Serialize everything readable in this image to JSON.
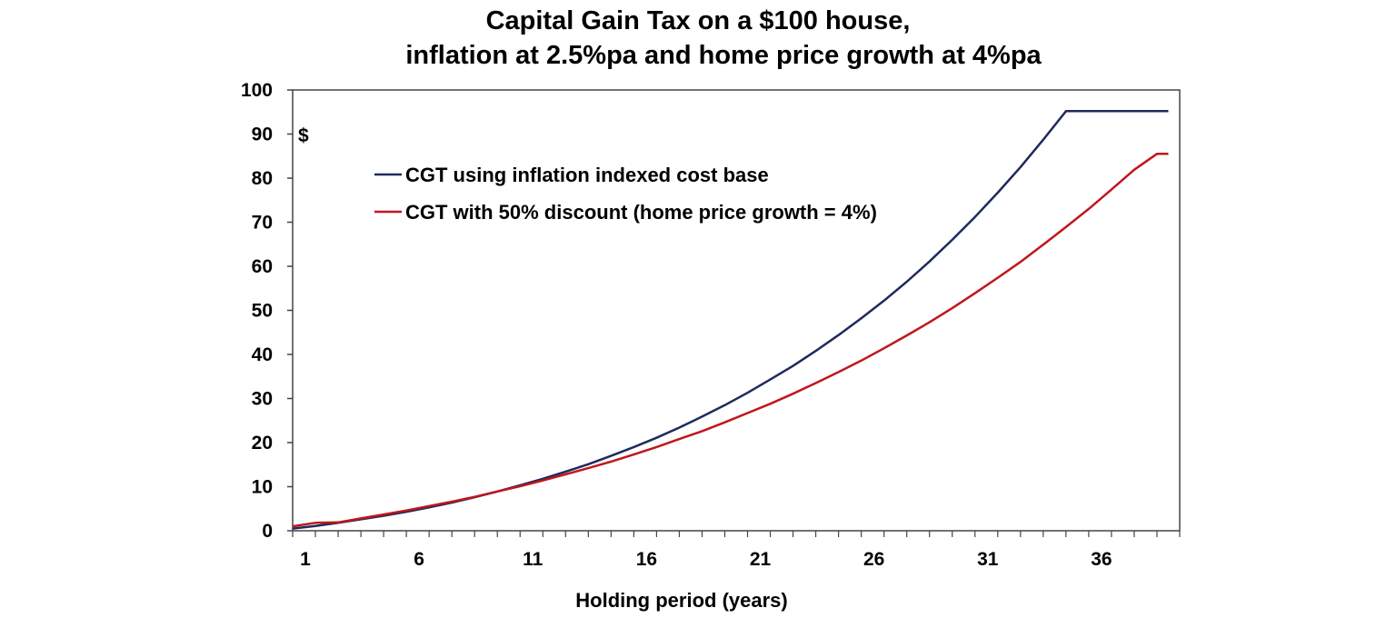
{
  "chart_data": {
    "type": "line",
    "title_line1": "Capital Gain Tax on a $100 house,",
    "title_line2": "inflation at 2.5%pa and home price growth at 4%pa",
    "xlabel": "Holding period (years)",
    "ylabel": "",
    "unit_label": "$",
    "xlim": [
      1,
      40
    ],
    "ylim": [
      0,
      100
    ],
    "x_ticks": [
      1,
      6,
      11,
      16,
      21,
      26,
      31,
      36
    ],
    "y_ticks": [
      0,
      10,
      20,
      30,
      40,
      50,
      60,
      70,
      80,
      90,
      100
    ],
    "grid": false,
    "legend_position": "upper-left",
    "x": [
      1,
      2,
      3,
      4,
      5,
      6,
      7,
      8,
      9,
      10,
      11,
      12,
      13,
      14,
      15,
      16,
      17,
      18,
      19,
      20,
      21,
      22,
      23,
      24,
      25,
      26,
      27,
      28,
      29,
      30,
      31,
      32,
      33,
      34,
      35,
      36,
      37,
      38,
      39,
      40
    ],
    "series": [
      {
        "name": "CGT using inflation indexed cost base",
        "color": "#1f2a5c",
        "values": [
          0.5,
          1.1,
          1.8,
          2.6,
          3.4,
          4.3,
          5.3,
          6.4,
          7.6,
          8.9,
          10.3,
          11.8,
          13.4,
          15.1,
          17.0,
          19.0,
          21.1,
          23.4,
          25.9,
          28.5,
          31.3,
          34.3,
          37.4,
          40.8,
          44.4,
          48.2,
          52.2,
          56.5,
          61.1,
          66.0,
          71.2,
          76.7,
          82.5,
          88.7,
          95.2,
          95.2,
          95.2,
          95.2,
          95.2,
          95.2
        ]
      },
      {
        "name": "CGT with 50% discount (home price growth = 4%)",
        "color": "#c0161c",
        "values": [
          1.0,
          1.8,
          1.9,
          2.8,
          3.7,
          4.6,
          5.6,
          6.6,
          7.7,
          8.9,
          10.1,
          11.4,
          12.8,
          14.2,
          15.7,
          17.3,
          19.0,
          20.8,
          22.6,
          24.6,
          26.7,
          28.8,
          31.1,
          33.5,
          36.0,
          38.6,
          41.4,
          44.3,
          47.3,
          50.5,
          53.9,
          57.4,
          61.0,
          64.9,
          68.9,
          73.0,
          77.4,
          81.9,
          85.5,
          85.5
        ]
      }
    ]
  }
}
